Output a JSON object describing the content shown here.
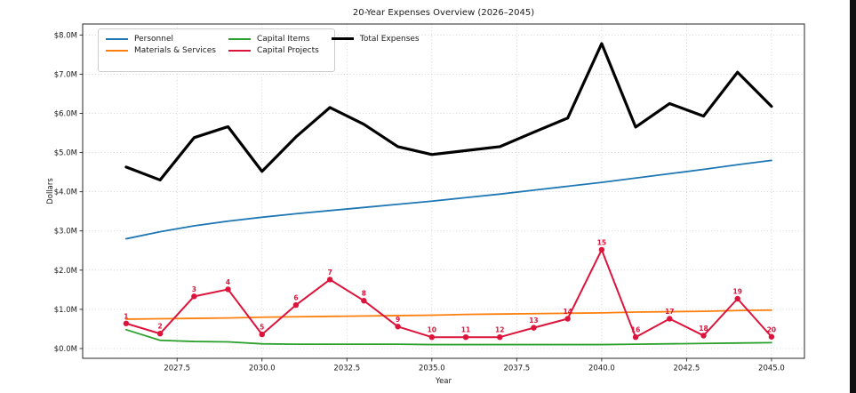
{
  "title": "20-Year Expenses Overview (2026–2045)",
  "legend": {
    "items": [
      {
        "label": "Personnel",
        "color": "#1f77b4",
        "lw": 2
      },
      {
        "label": "Materials & Services",
        "color": "#ff7f0e",
        "lw": 2
      },
      {
        "label": "Capital Items",
        "color": "#2ca02c",
        "lw": 2
      },
      {
        "label": "Capital Projects",
        "color": "#dc143c",
        "lw": 2
      },
      {
        "label": "Total Expenses",
        "color": "#000000",
        "lw": 3
      }
    ]
  },
  "colors": {
    "grid": "#cccccc",
    "spine": "#262626",
    "right_bar": "#111111",
    "annotation": "#dc143c",
    "background": "#ffffff"
  },
  "chart_data": {
    "type": "line",
    "title": "20-Year Expenses Overview (2026–2045)",
    "xlabel": "Year",
    "ylabel": "Dollars",
    "grid": "dotted",
    "legend_position": "upper left, 2 columns",
    "x": [
      2026,
      2027,
      2028,
      2029,
      2030,
      2031,
      2032,
      2033,
      2034,
      2035,
      2036,
      2037,
      2038,
      2039,
      2040,
      2041,
      2042,
      2043,
      2044,
      2045
    ],
    "series": [
      {
        "name": "Personnel",
        "color": "#1f77b4",
        "lw": 1.8,
        "values": [
          2.8,
          2.98,
          3.13,
          3.25,
          3.35,
          3.44,
          3.52,
          3.6,
          3.68,
          3.76,
          3.85,
          3.94,
          4.04,
          4.14,
          4.24,
          4.35,
          4.46,
          4.57,
          4.69,
          4.8
        ]
      },
      {
        "name": "Materials & Services",
        "color": "#ff7f0e",
        "lw": 1.8,
        "values": [
          0.75,
          0.76,
          0.77,
          0.78,
          0.8,
          0.81,
          0.82,
          0.83,
          0.84,
          0.85,
          0.87,
          0.88,
          0.89,
          0.9,
          0.91,
          0.93,
          0.94,
          0.95,
          0.97,
          0.98
        ]
      },
      {
        "name": "Capital Items",
        "color": "#2ca02c",
        "lw": 1.8,
        "values": [
          0.48,
          0.21,
          0.18,
          0.17,
          0.12,
          0.11,
          0.11,
          0.11,
          0.11,
          0.1,
          0.1,
          0.1,
          0.1,
          0.1,
          0.1,
          0.11,
          0.12,
          0.13,
          0.14,
          0.15
        ]
      },
      {
        "name": "Capital Projects",
        "color": "#dc143c",
        "lw": 2,
        "markers": true,
        "values": [
          0.64,
          0.38,
          1.33,
          1.51,
          0.36,
          1.11,
          1.76,
          1.22,
          0.56,
          0.29,
          0.29,
          0.29,
          0.53,
          0.76,
          2.52,
          0.29,
          0.76,
          0.33,
          1.27,
          0.3
        ],
        "point_labels": [
          "1",
          "2",
          "3",
          "4",
          "5",
          "6",
          "7",
          "8",
          "9",
          "10",
          "11",
          "12",
          "13",
          "14",
          "15",
          "16",
          "17",
          "18",
          "19",
          "20"
        ]
      },
      {
        "name": "Total Expenses",
        "color": "#000000",
        "lw": 3.2,
        "values": [
          4.63,
          4.3,
          5.38,
          5.66,
          4.52,
          5.4,
          6.15,
          5.72,
          5.15,
          4.95,
          5.05,
          5.15,
          5.52,
          5.88,
          7.78,
          5.65,
          6.25,
          5.93,
          7.05,
          6.18
        ]
      }
    ],
    "xlim": [
      2024.72,
      2045.97
    ],
    "ylim": [
      -0.25,
      8.28
    ],
    "x_tick_values": [
      2027.5,
      2030.0,
      2032.5,
      2035.0,
      2037.5,
      2040.0,
      2042.5,
      2045.0
    ],
    "x_tick_labels": [
      "2027.5",
      "2030.0",
      "2032.5",
      "2035.0",
      "2037.5",
      "2040.0",
      "2042.5",
      "2045.0"
    ],
    "y_tick_values": [
      0,
      1,
      2,
      3,
      4,
      5,
      6,
      7,
      8
    ],
    "y_tick_labels": [
      "$0.0M",
      "$1.0M",
      "$2.0M",
      "$3.0M",
      "$4.0M",
      "$5.0M",
      "$6.0M",
      "$7.0M",
      "$8.0M"
    ]
  }
}
